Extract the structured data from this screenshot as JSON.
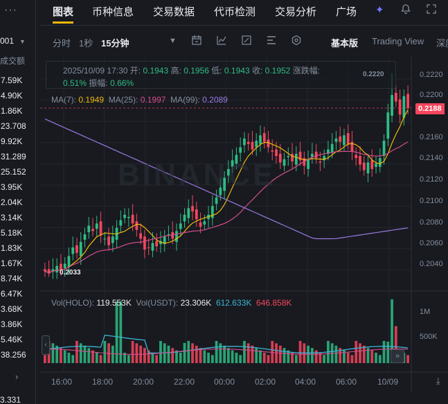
{
  "left_panel": {
    "menu_icon": "more-dots-icon",
    "selected_value": "001",
    "column_title": "成交额",
    "volumes": [
      "7.59K",
      "4.90K",
      "1.86K",
      "23.708",
      "9.92K",
      "31.289",
      "25.152",
      "3.95K",
      "2.04K",
      "3.14K",
      "5.18K",
      "1.83K",
      "1.67K",
      "8.74K",
      "6.47K",
      "3.68K",
      "3.86K",
      "5.46K",
      "38.256"
    ],
    "last_value": "3.331"
  },
  "nav": {
    "tabs": [
      "图表",
      "币种信息",
      "交易数据",
      "代币检测",
      "交易分析",
      "广场"
    ],
    "active_tab": "图表",
    "icons": [
      "ai-sparkle-icon",
      "bell-icon",
      "expand-icon"
    ]
  },
  "toolbar": {
    "intervals": [
      "分时",
      "1秒",
      "15分钟"
    ],
    "active_interval": "15分钟",
    "modes": [
      "基本版",
      "Trading View",
      "深度"
    ],
    "active_mode": "基本版"
  },
  "info": {
    "date": "2025/10/09 17:30",
    "open_label": "开:",
    "open": "0.1943",
    "high_label": "高:",
    "high": "0.1956",
    "low_label": "低:",
    "low": "0.1943",
    "close_label": "收:",
    "close": "0.1952",
    "change_label": "涨跌幅:",
    "change": "0.51%",
    "amp_label": "振幅:",
    "amp": "0.66%"
  },
  "ma": {
    "ma7_label": "MA(7):",
    "ma7": "0.1949",
    "ma25_label": "MA(25):",
    "ma25": "0.1997",
    "ma99_label": "MA(99):",
    "ma99": "0.2089"
  },
  "volume": {
    "label1": "Vol(HOLO):",
    "v1": "119.553K",
    "label2": "Vol(USDT):",
    "v2": "23.306K",
    "v3": "612.633K",
    "v4": "646.858K",
    "axis": [
      "1M",
      "500K"
    ]
  },
  "chart": {
    "current_price": "0.2188",
    "high_marker": "0.2220",
    "low_marker": "0.2033",
    "watermark": "BINANCE",
    "y_ticks": [
      "0.2220",
      "0.2200",
      "0.2180",
      "0.2160",
      "0.2140",
      "0.2120",
      "0.2100",
      "0.2080",
      "0.2060",
      "0.2040"
    ],
    "x_ticks": [
      "16:00",
      "18:00",
      "20:00",
      "22:00",
      "00:00",
      "02:00",
      "04:00",
      "06:00",
      "10/09"
    ]
  },
  "colors": {
    "up": "#2ebd85",
    "down": "#f6465d",
    "ma7": "#f0b90b",
    "ma25": "#d64d8e",
    "ma99": "#9b7ae0",
    "bg": "#181a20"
  },
  "chart_data": {
    "type": "candlestick",
    "title": "",
    "interval": "15m",
    "y_range": [
      0.2025,
      0.223
    ],
    "closes": [
      0.2038,
      0.2036,
      0.204,
      0.2043,
      0.2039,
      0.2045,
      0.2052,
      0.206,
      0.2055,
      0.2065,
      0.2072,
      0.208,
      0.2075,
      0.2082,
      0.2071,
      0.2068,
      0.2062,
      0.207,
      0.2078,
      0.2085,
      0.209,
      0.2088,
      0.2082,
      0.2076,
      0.2068,
      0.2058,
      0.206,
      0.2064,
      0.2061,
      0.2066,
      0.207,
      0.2072,
      0.2068,
      0.2075,
      0.2082,
      0.209,
      0.2096,
      0.2093,
      0.2086,
      0.2079,
      0.2084,
      0.209,
      0.2098,
      0.2106,
      0.2115,
      0.2124,
      0.2132,
      0.214,
      0.2145,
      0.2152,
      0.216,
      0.2155,
      0.215,
      0.2158,
      0.2163,
      0.2157,
      0.2152,
      0.2148,
      0.2144,
      0.2138,
      0.2141,
      0.2144,
      0.2139,
      0.2146,
      0.214,
      0.2135,
      0.2141,
      0.2146,
      0.2142,
      0.2138,
      0.2144,
      0.215,
      0.2155,
      0.216,
      0.2157,
      0.2163,
      0.2155,
      0.2148,
      0.2142,
      0.2136,
      0.2131,
      0.2138,
      0.2132,
      0.2137,
      0.2142,
      0.2158,
      0.2184,
      0.22,
      0.2194,
      0.2182,
      0.2199,
      0.2188
    ]
  }
}
